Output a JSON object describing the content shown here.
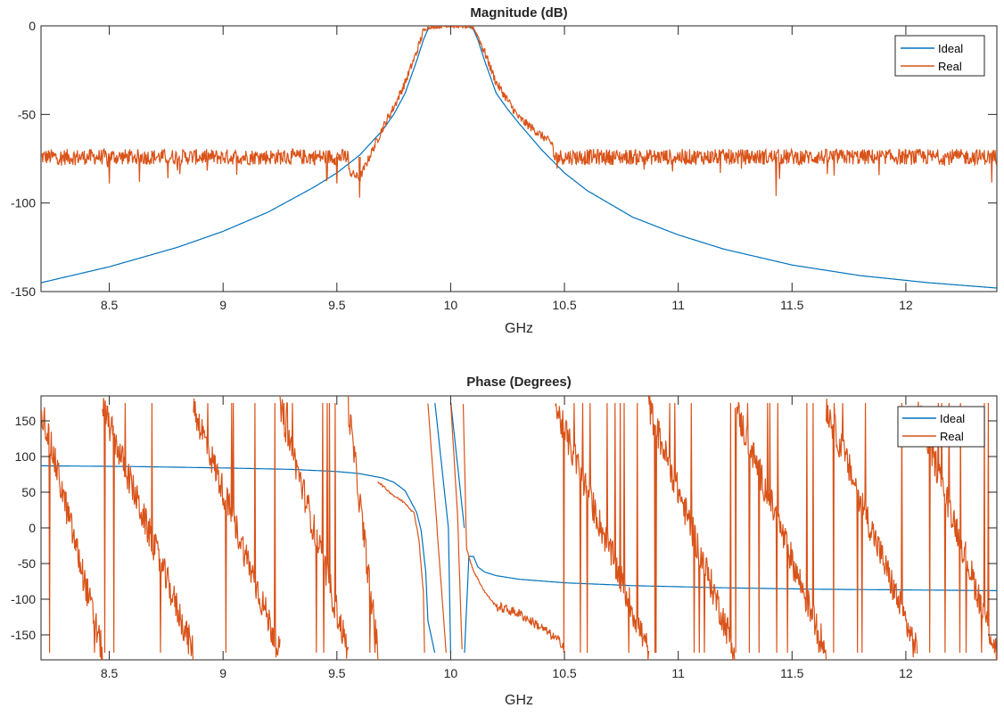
{
  "chart_data": [
    {
      "type": "line",
      "title": "Magnitude (dB)",
      "xlabel": "GHz",
      "ylabel": "",
      "xlim": [
        8.2,
        12.4
      ],
      "ylim": [
        -150,
        0
      ],
      "xticks": [
        8.5,
        9,
        9.5,
        10,
        10.5,
        11,
        11.5,
        12
      ],
      "xtick_labels": [
        "8.5",
        "9",
        "9.5",
        "10",
        "10.5",
        "11",
        "11.5",
        "12"
      ],
      "yticks": [
        -150,
        -100,
        -50,
        0
      ],
      "ytick_labels": [
        "-150",
        "-100",
        "-50",
        "0"
      ],
      "grid": false,
      "legend_location": "top-right",
      "series": [
        {
          "name": "Ideal",
          "color": "#0072BD",
          "x": [
            8.2,
            8.5,
            8.8,
            9.0,
            9.2,
            9.4,
            9.5,
            9.6,
            9.7,
            9.75,
            9.8,
            9.85,
            9.88,
            9.9,
            9.93,
            10.0,
            10.07,
            10.1,
            10.12,
            10.15,
            10.2,
            10.25,
            10.3,
            10.4,
            10.5,
            10.6,
            10.8,
            11.0,
            11.2,
            11.5,
            11.8,
            12.1,
            12.4
          ],
          "y": [
            -145,
            -136,
            -125,
            -116,
            -105,
            -91,
            -83,
            -73,
            -59,
            -50,
            -38,
            -20,
            -8,
            -2,
            0,
            0,
            0,
            -2,
            -8,
            -20,
            -38,
            -47,
            -55,
            -70,
            -83,
            -93,
            -108,
            -118,
            -126,
            -135,
            -141,
            -145,
            -148
          ]
        },
        {
          "name": "Real",
          "color": "#D95319",
          "x": [
            8.2,
            9.4,
            9.5,
            9.6,
            9.7,
            9.75,
            9.8,
            9.85,
            9.88,
            9.9,
            10.0,
            10.1,
            10.12,
            10.15,
            10.2,
            10.3,
            10.4,
            10.5,
            11.0,
            12.4
          ],
          "y": [
            -74,
            -74,
            -78,
            -86,
            -58,
            -46,
            -32,
            -15,
            -3,
            -1,
            0,
            -1,
            -6,
            -15,
            -32,
            -52,
            -62,
            -72,
            -74,
            -74
          ],
          "noise_floor_db": -74,
          "noise_spikes": [
            {
              "x": 9.6,
              "y": -97
            },
            {
              "x": 11.43,
              "y": -96
            },
            {
              "x": 9.5,
              "y": -89
            },
            {
              "x": 8.5,
              "y": -89
            }
          ]
        }
      ]
    },
    {
      "type": "line",
      "title": "Phase (Degrees)",
      "xlabel": "GHz",
      "ylabel": "",
      "xlim": [
        8.2,
        12.4
      ],
      "ylim": [
        -185,
        185
      ],
      "xticks": [
        8.5,
        9,
        9.5,
        10,
        10.5,
        11,
        11.5,
        12
      ],
      "xtick_labels": [
        "8.5",
        "9",
        "9.5",
        "10",
        "10.5",
        "11",
        "11.5",
        "12"
      ],
      "yticks": [
        -150,
        -100,
        -50,
        0,
        50,
        100,
        150
      ],
      "ytick_labels": [
        "-150",
        "-100",
        "-50",
        "0",
        "50",
        "100",
        "150"
      ],
      "grid": false,
      "legend_location": "top-right",
      "series": [
        {
          "name": "Ideal",
          "color": "#0072BD",
          "x": [
            8.2,
            8.6,
            9.0,
            9.3,
            9.5,
            9.6,
            9.7,
            9.75,
            9.8,
            9.85,
            9.87,
            9.89,
            9.9,
            9.93,
            9.931,
            9.99,
            10.0,
            10.001,
            10.06,
            10.061,
            10.08,
            10.1,
            10.12,
            10.15,
            10.2,
            10.3,
            10.5,
            10.8,
            11.2,
            11.6,
            12.0,
            12.4
          ],
          "y": [
            87,
            86,
            84,
            82,
            79,
            76,
            70,
            64,
            52,
            22,
            -3,
            -60,
            -130,
            -175,
            175,
            0,
            -175,
            175,
            0,
            -175,
            -40,
            -40,
            -55,
            -62,
            -67,
            -72,
            -77,
            -81,
            -84,
            -86,
            -87,
            -88
          ]
        },
        {
          "name": "Real",
          "color": "#D95319",
          "wrapped_periods_start_x": [
            8.2,
            8.47,
            8.87,
            9.25,
            9.55
          ],
          "wrapped_periods_end_x": [
            8.47,
            8.87,
            9.25,
            9.55,
            9.68
          ],
          "x": [
            9.68,
            9.75,
            9.8,
            9.84,
            9.86,
            9.88,
            9.885,
            9.9,
            9.98,
            10.0,
            10.03,
            10.05,
            10.055,
            10.07,
            10.1,
            10.15,
            10.2,
            10.3,
            10.4,
            10.5
          ],
          "y": [
            65,
            45,
            35,
            20,
            -15,
            -90,
            -175,
            175,
            -175,
            175,
            20,
            -170,
            175,
            -30,
            -60,
            -90,
            -110,
            -120,
            -140,
            -165
          ],
          "post_band_periods_start_x": [
            10.46,
            10.87,
            11.25,
            11.65,
            12.05
          ],
          "post_band_periods_end_x": [
            10.87,
            11.25,
            11.65,
            12.05,
            12.4
          ]
        }
      ]
    }
  ]
}
